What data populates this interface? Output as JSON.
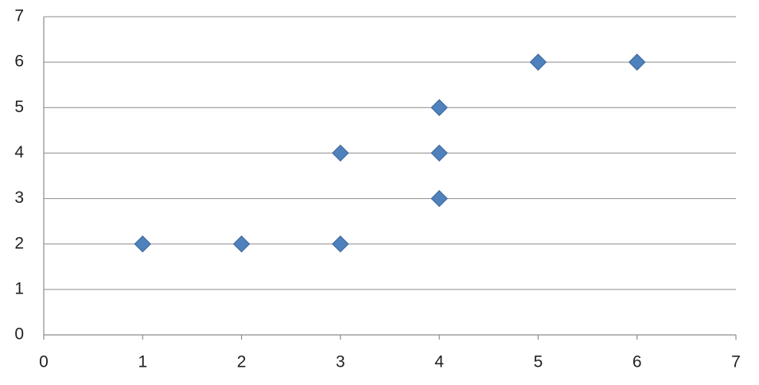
{
  "chart_data": {
    "type": "scatter",
    "x": [
      1,
      2,
      3,
      3,
      4,
      4,
      4,
      5,
      6
    ],
    "values": [
      2,
      2,
      2,
      4,
      3,
      4,
      5,
      6,
      6
    ],
    "color": "#4f81bd",
    "xlim": [
      0,
      7
    ],
    "xticks": [
      0,
      1,
      2,
      3,
      4,
      5,
      6,
      7
    ],
    "ylim": [
      0,
      7
    ],
    "yticks": [
      0,
      1,
      2,
      3,
      4,
      5,
      6,
      7
    ],
    "grid": true
  }
}
